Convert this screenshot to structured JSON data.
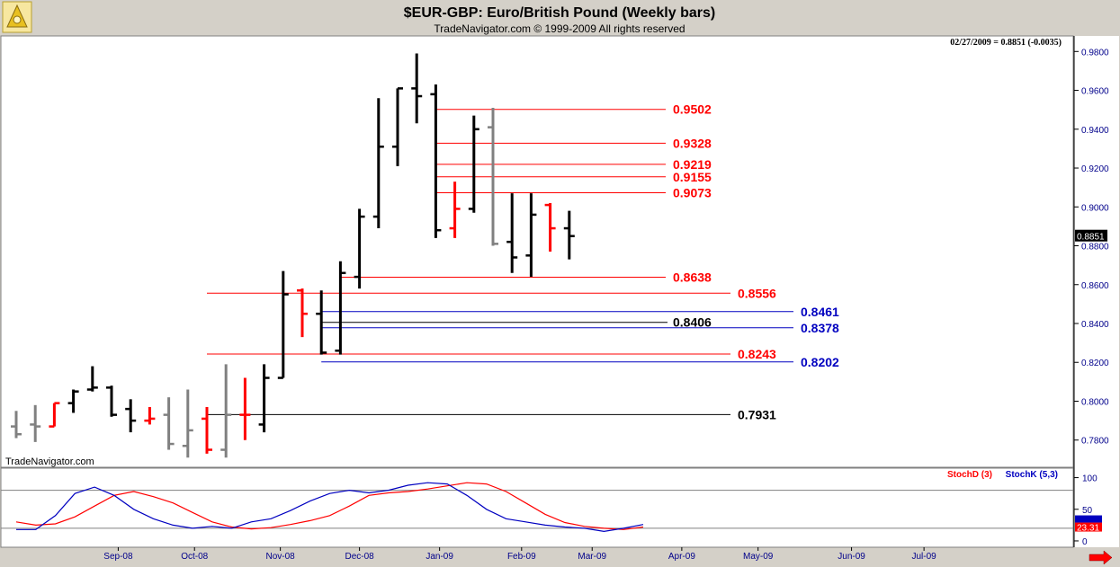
{
  "header": {
    "title": "$EUR-GBP:  Euro/British Pound  (Weekly bars)",
    "copyright": "TradeNavigator.com © 1999-2009 All rights reserved",
    "last_quote": "02/27/2009 = 0.8851 (-0.0035)",
    "watermark": "TradeNavigator.com"
  },
  "chart_data": [
    {
      "type": "ohlc",
      "title": "$EUR-GBP:  Euro/British Pound  (Weekly bars)",
      "ylim": [
        0.766,
        0.988
      ],
      "y_ticks": [
        0.78,
        0.8,
        0.82,
        0.84,
        0.86,
        0.88,
        0.9,
        0.92,
        0.94,
        0.96,
        0.98
      ],
      "y_tick_labels": [
        "0.7800",
        "0.8000",
        "0.8200",
        "0.8400",
        "0.8600",
        "0.8800",
        "0.9000",
        "0.9200",
        "0.9400",
        "0.9600",
        "0.9800"
      ],
      "x_labels": [
        "Sep-08",
        "Oct-08",
        "Nov-08",
        "Dec-08",
        "Jan-09",
        "Feb-09",
        "Mar-09",
        "Apr-09",
        "May-09",
        "Jun-09",
        "Jul-09"
      ],
      "x_label_weeks": [
        5.35,
        9.35,
        13.85,
        18.0,
        22.2,
        26.5,
        30.2,
        34.9,
        38.9,
        43.8,
        47.6
      ],
      "x_weeks_total": 52,
      "current_price_label": "0.8851",
      "colors": {
        "up": "#000000",
        "down": "#000000",
        "red": "#ff0000",
        "gray": "#808080"
      },
      "bars": [
        {
          "o": 0.787,
          "h": 0.795,
          "l": 0.781,
          "c": 0.783,
          "color": "#808080"
        },
        {
          "o": 0.788,
          "h": 0.798,
          "l": 0.779,
          "c": 0.787,
          "color": "#808080"
        },
        {
          "o": 0.787,
          "h": 0.799,
          "l": 0.787,
          "c": 0.799,
          "color": "#ff0000"
        },
        {
          "o": 0.799,
          "h": 0.806,
          "l": 0.794,
          "c": 0.805,
          "color": "#000000"
        },
        {
          "o": 0.806,
          "h": 0.818,
          "l": 0.805,
          "c": 0.807,
          "color": "#000000"
        },
        {
          "o": 0.807,
          "h": 0.808,
          "l": 0.792,
          "c": 0.793,
          "color": "#000000"
        },
        {
          "o": 0.796,
          "h": 0.801,
          "l": 0.784,
          "c": 0.79,
          "color": "#000000"
        },
        {
          "o": 0.79,
          "h": 0.797,
          "l": 0.788,
          "c": 0.791,
          "color": "#ff0000"
        },
        {
          "o": 0.793,
          "h": 0.802,
          "l": 0.775,
          "c": 0.778,
          "color": "#808080"
        },
        {
          "o": 0.777,
          "h": 0.806,
          "l": 0.771,
          "c": 0.785,
          "color": "#808080"
        },
        {
          "o": 0.791,
          "h": 0.797,
          "l": 0.773,
          "c": 0.775,
          "color": "#ff0000"
        },
        {
          "o": 0.775,
          "h": 0.819,
          "l": 0.771,
          "c": 0.793,
          "color": "#808080"
        },
        {
          "o": 0.793,
          "h": 0.812,
          "l": 0.78,
          "c": 0.793,
          "color": "#ff0000"
        },
        {
          "o": 0.788,
          "h": 0.819,
          "l": 0.784,
          "c": 0.812,
          "color": "#000000"
        },
        {
          "o": 0.812,
          "h": 0.867,
          "l": 0.812,
          "c": 0.855,
          "color": "#000000"
        },
        {
          "o": 0.857,
          "h": 0.858,
          "l": 0.833,
          "c": 0.845,
          "color": "#ff0000"
        },
        {
          "o": 0.845,
          "h": 0.857,
          "l": 0.824,
          "c": 0.825,
          "color": "#000000"
        },
        {
          "o": 0.826,
          "h": 0.872,
          "l": 0.824,
          "c": 0.866,
          "color": "#000000"
        },
        {
          "o": 0.864,
          "h": 0.899,
          "l": 0.858,
          "c": 0.895,
          "color": "#000000"
        },
        {
          "o": 0.895,
          "h": 0.956,
          "l": 0.889,
          "c": 0.931,
          "color": "#000000"
        },
        {
          "o": 0.931,
          "h": 0.961,
          "l": 0.921,
          "c": 0.961,
          "color": "#000000"
        },
        {
          "o": 0.961,
          "h": 0.979,
          "l": 0.943,
          "c": 0.957,
          "color": "#000000"
        },
        {
          "o": 0.958,
          "h": 0.963,
          "l": 0.884,
          "c": 0.888,
          "color": "#000000"
        },
        {
          "o": 0.889,
          "h": 0.913,
          "l": 0.884,
          "c": 0.899,
          "color": "#ff0000"
        },
        {
          "o": 0.899,
          "h": 0.947,
          "l": 0.897,
          "c": 0.94,
          "color": "#000000"
        },
        {
          "o": 0.941,
          "h": 0.951,
          "l": 0.88,
          "c": 0.881,
          "color": "#808080"
        },
        {
          "o": 0.882,
          "h": 0.907,
          "l": 0.866,
          "c": 0.874,
          "color": "#000000"
        },
        {
          "o": 0.875,
          "h": 0.907,
          "l": 0.864,
          "c": 0.896,
          "color": "#000000"
        },
        {
          "o": 0.901,
          "h": 0.902,
          "l": 0.877,
          "c": 0.889,
          "color": "#ff0000"
        },
        {
          "o": 0.889,
          "h": 0.898,
          "l": 0.873,
          "c": 0.885,
          "color": "#000000"
        }
      ],
      "levels": [
        {
          "value": 0.9502,
          "label": "0.9502",
          "color": "#ff0000",
          "from_week": 22
        },
        {
          "value": 0.9328,
          "label": "0.9328",
          "color": "#ff0000",
          "from_week": 22
        },
        {
          "value": 0.9219,
          "label": "0.9219",
          "color": "#ff0000",
          "from_week": 22
        },
        {
          "value": 0.9155,
          "label": "0.9155",
          "color": "#ff0000",
          "from_week": 22
        },
        {
          "value": 0.9073,
          "label": "0.9073",
          "color": "#ff0000",
          "from_week": 22
        },
        {
          "value": 0.8638,
          "label": "0.8638",
          "color": "#ff0000",
          "from_week": 17
        },
        {
          "value": 0.8556,
          "label": "0.8556",
          "color": "#ff0000",
          "from_week": 10
        },
        {
          "value": 0.8461,
          "label": "0.8461",
          "color": "#0000c0",
          "from_week": 16
        },
        {
          "value": 0.8406,
          "label": "0.8406",
          "color": "#000000",
          "from_week": 16
        },
        {
          "value": 0.8378,
          "label": "0.8378",
          "color": "#0000c0",
          "from_week": 16
        },
        {
          "value": 0.8243,
          "label": "0.8243",
          "color": "#ff0000",
          "from_week": 10
        },
        {
          "value": 0.8202,
          "label": "0.8202",
          "color": "#0000c0",
          "from_week": 16
        },
        {
          "value": 0.7931,
          "label": "0.7931",
          "color": "#000000",
          "from_week": 10
        }
      ]
    },
    {
      "type": "line",
      "title": "",
      "ylim": [
        -10,
        115
      ],
      "y_ticks": [
        0,
        50,
        100
      ],
      "y_tick_labels": [
        "0",
        "50",
        "100"
      ],
      "reference_lines": [
        80,
        20
      ],
      "current_value_label": "23.31",
      "series": [
        {
          "name": "StochD (3)",
          "color": "#ff0000",
          "values": [
            30,
            25,
            27,
            38,
            55,
            72,
            78,
            70,
            60,
            45,
            30,
            22,
            19,
            21,
            26,
            32,
            40,
            55,
            72,
            76,
            78,
            82,
            87,
            92,
            90,
            78,
            60,
            42,
            29,
            23,
            20,
            18,
            22
          ]
        },
        {
          "name": "StochK (5,3)",
          "color": "#0000c0",
          "values": [
            18,
            18,
            40,
            75,
            85,
            72,
            50,
            35,
            25,
            20,
            23,
            20,
            30,
            35,
            48,
            63,
            75,
            80,
            76,
            80,
            88,
            92,
            90,
            72,
            50,
            35,
            30,
            25,
            22,
            20,
            15,
            20,
            26
          ]
        }
      ]
    }
  ]
}
